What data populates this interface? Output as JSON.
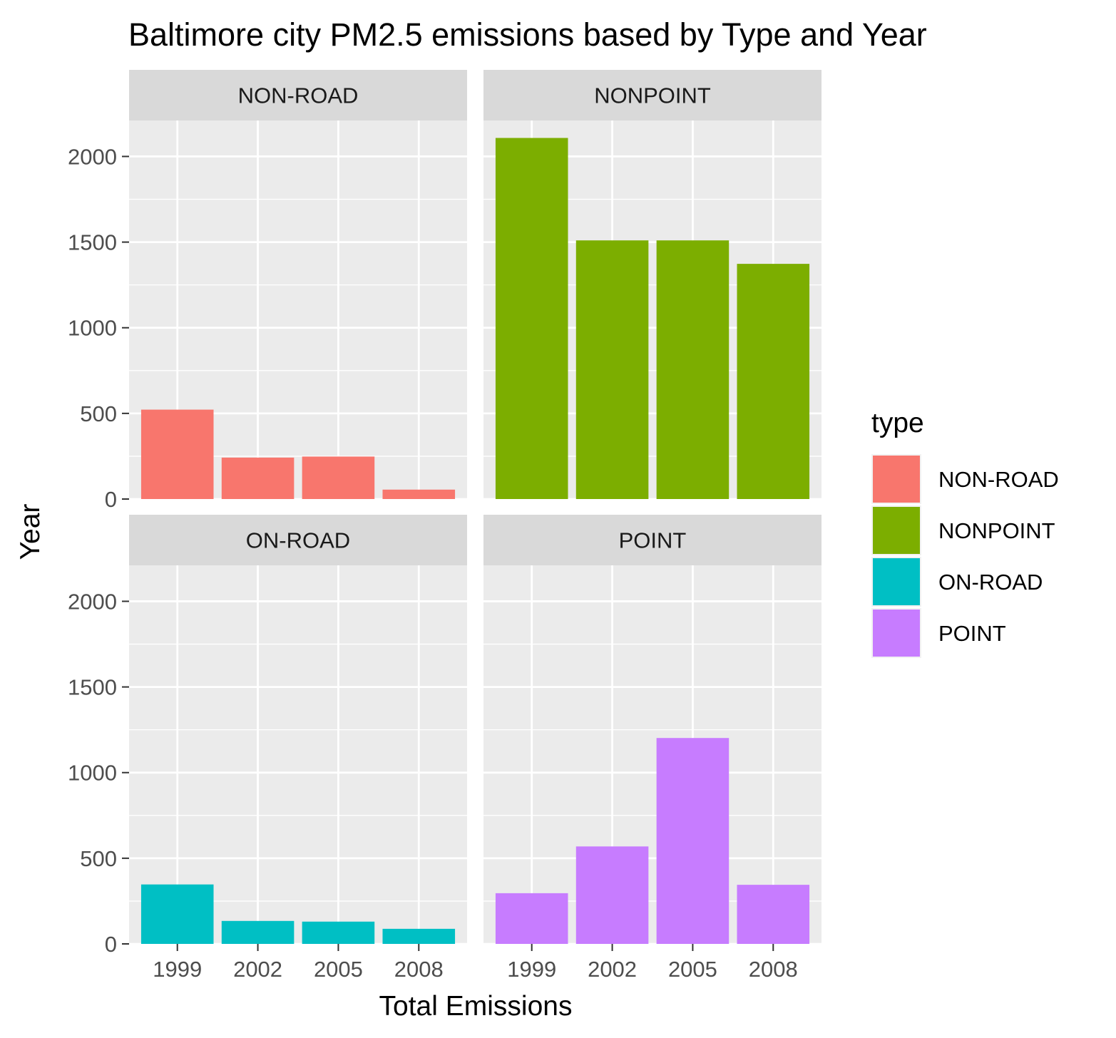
{
  "chart_data": {
    "type": "bar",
    "title": "Baltimore city PM2.5 emissions based by Type and Year",
    "xlabel": "Total Emissions",
    "ylabel": "Year",
    "categories": [
      "1999",
      "2002",
      "2005",
      "2008"
    ],
    "ylim": [
      0,
      2210
    ],
    "y_ticks": [
      0,
      500,
      1000,
      1500,
      2000
    ],
    "y_tick_labels": [
      "0",
      "500",
      "1000",
      "1500",
      "2000"
    ],
    "grid": true,
    "legend": {
      "title": "type",
      "position": "right",
      "entries": [
        "NON-ROAD",
        "NONPOINT",
        "ON-ROAD",
        "POINT"
      ]
    },
    "facets": [
      {
        "label": "NON-ROAD",
        "color": "#F8766D",
        "values": [
          522,
          242,
          248,
          55
        ]
      },
      {
        "label": "NONPOINT",
        "color": "#7CAE00",
        "values": [
          2108,
          1510,
          1510,
          1373
        ]
      },
      {
        "label": "ON-ROAD",
        "color": "#00BFC4",
        "values": [
          347,
          134,
          130,
          88
        ]
      },
      {
        "label": "POINT",
        "color": "#C77CFF",
        "values": [
          296,
          569,
          1202,
          345
        ]
      }
    ]
  }
}
